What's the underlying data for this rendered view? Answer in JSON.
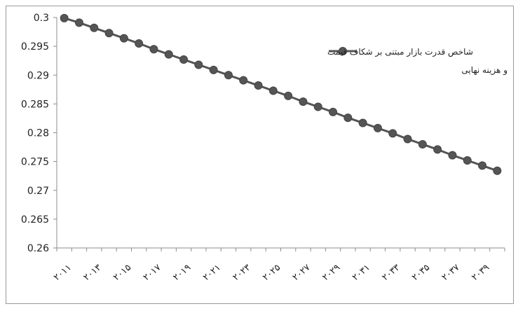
{
  "chart_data": {
    "type": "line",
    "title": "",
    "xlabel": "",
    "ylabel": "",
    "ylim": [
      0.26,
      0.3
    ],
    "y_ticks": [
      "0.26",
      "0.265",
      "0.27",
      "0.275",
      "0.28",
      "0.285",
      "0.29",
      "0.295",
      "0.3"
    ],
    "x_tick_labels": [
      "۲۰۱۱",
      "۲۰۱۳",
      "۲۰۱۵",
      "۲۰۱۷",
      "۲۰۱۹",
      "۲۰۲۱",
      "۲۰۲۳",
      "۲۰۲۵",
      "۲۰۲۷",
      "۲۰۲۹",
      "۲۰۳۱",
      "۲۰۳۳",
      "۲۰۳۵",
      "۲۰۳۷",
      "۲۰۳۹"
    ],
    "grid": false,
    "legend_position": "right",
    "series": [
      {
        "name": "شاخص قدرت بازار مبتنی بر شکاف قیمت و هزینه نهایی",
        "color": "#555555",
        "x": [
          2011,
          2012,
          2013,
          2014,
          2015,
          2016,
          2017,
          2018,
          2019,
          2020,
          2021,
          2022,
          2023,
          2024,
          2025,
          2026,
          2027,
          2028,
          2029,
          2030,
          2031,
          2032,
          2033,
          2034,
          2035,
          2036,
          2037,
          2038,
          2039,
          2040
        ],
        "values": [
          0.2999,
          0.2991,
          0.2982,
          0.2973,
          0.2964,
          0.2955,
          0.2945,
          0.2936,
          0.2927,
          0.2918,
          0.2909,
          0.29,
          0.2891,
          0.2882,
          0.2873,
          0.2864,
          0.2854,
          0.2845,
          0.2836,
          0.2826,
          0.2817,
          0.2808,
          0.2799,
          0.2789,
          0.278,
          0.2771,
          0.2761,
          0.2752,
          0.2743,
          0.2734
        ]
      }
    ]
  }
}
